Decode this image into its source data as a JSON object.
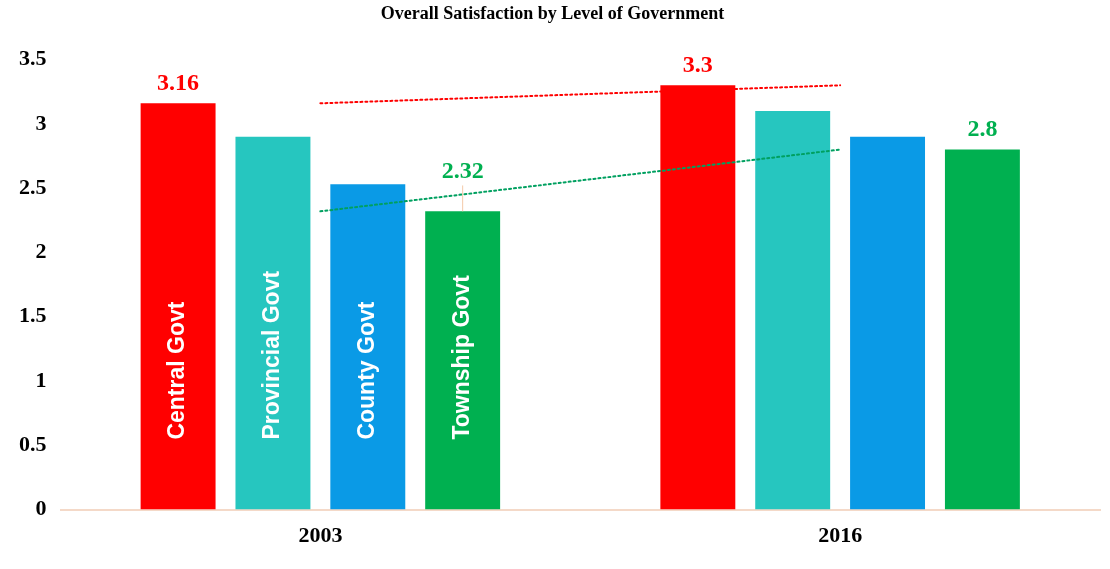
{
  "chart_data": {
    "type": "bar",
    "title": "Overall Satisfaction by Level of Government",
    "categories": [
      "2003",
      "2016"
    ],
    "series": [
      {
        "name": "Central Govt",
        "color": "#ff0000",
        "values": [
          3.16,
          3.3
        ],
        "value_labels": [
          "3.16",
          "3.3"
        ]
      },
      {
        "name": "Provincial Govt",
        "color": "#26c6bf",
        "values": [
          2.9,
          3.1
        ],
        "value_labels": [
          null,
          null
        ]
      },
      {
        "name": "County Govt",
        "color": "#0a9ae6",
        "values": [
          2.53,
          2.9
        ],
        "value_labels": [
          null,
          null
        ]
      },
      {
        "name": "Township Govt",
        "color": "#00b050",
        "values": [
          2.32,
          2.8
        ],
        "value_labels": [
          "2.32",
          "2.8"
        ]
      },
      {
        "type": "line",
        "color": "#ff0000",
        "values": [
          3.16,
          3.3
        ],
        "line_style": "dotted"
      },
      {
        "type": "line",
        "color": "#00a060",
        "values": [
          2.32,
          2.8
        ],
        "line_style": "dotted"
      }
    ],
    "ylim": [
      0,
      3.5
    ],
    "yticks": [
      0,
      0.5,
      1,
      1.5,
      2,
      2.5,
      3,
      3.5
    ],
    "grid": false,
    "legend": false,
    "marker": "none"
  }
}
